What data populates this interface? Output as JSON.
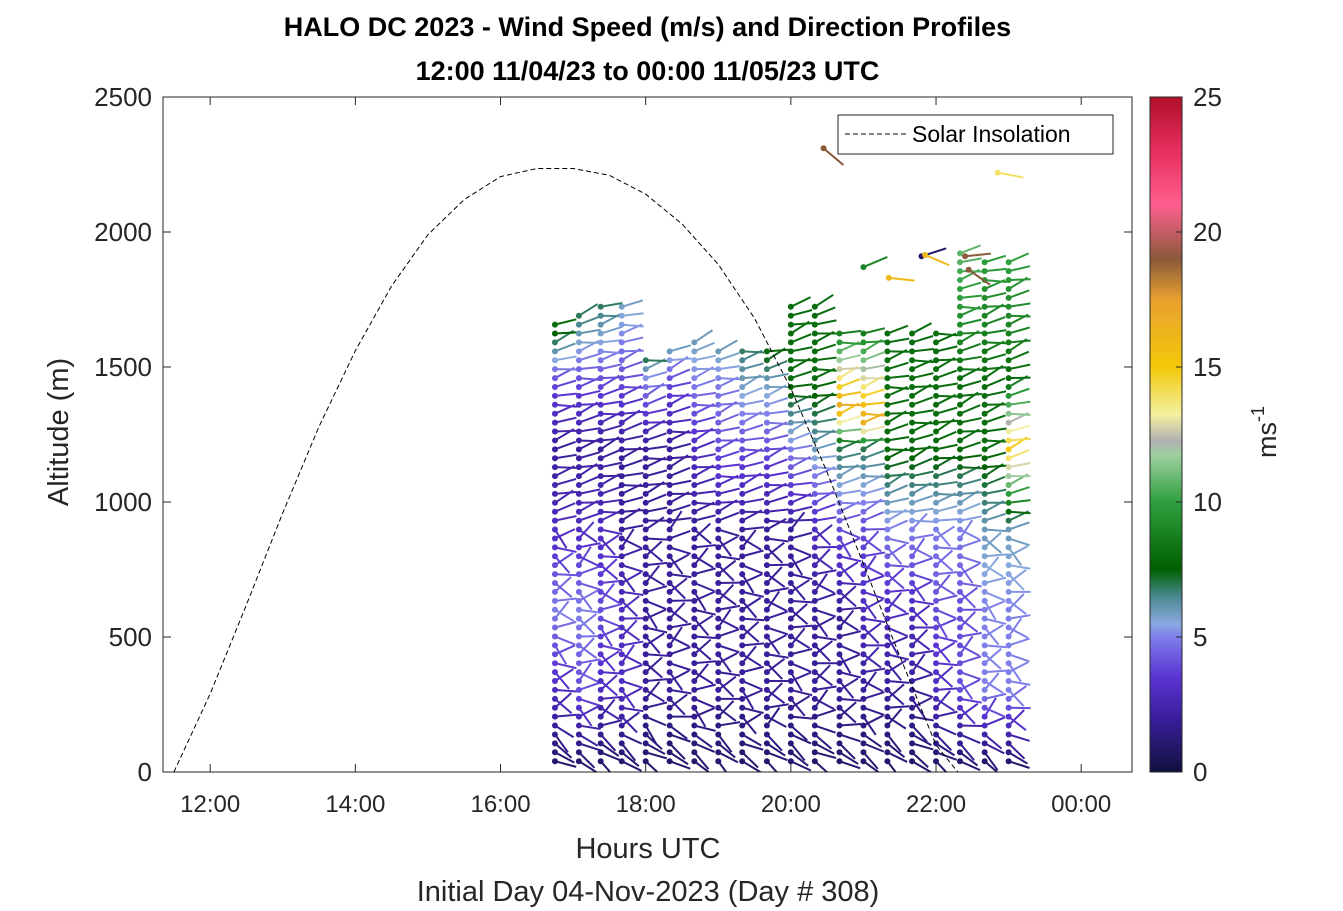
{
  "title_line1": "HALO DC 2023 - Wind Speed (m/s) and Direction Profiles",
  "title_line2": "12:00 11/04/23 to 00:00 11/05/23  UTC",
  "legend_label": "Solar Insolation",
  "colorbar_unit": "ms",
  "colorbar_unit_exp": "-1",
  "chart_data": {
    "type": "quiver",
    "xlabel": "Hours UTC",
    "ylabel": "Altitude (m)",
    "subtitle": "Initial Day 04-Nov-2023 (Day # 308)",
    "x_ticks": [
      "12:00",
      "14:00",
      "16:00",
      "18:00",
      "20:00",
      "22:00",
      "00:00"
    ],
    "x_tick_hours": [
      12,
      14,
      16,
      18,
      20,
      22,
      24
    ],
    "xlim_hours": [
      11.35,
      24.7
    ],
    "y_ticks": [
      0,
      500,
      1000,
      1500,
      2000,
      2500
    ],
    "ylim": [
      0,
      2500
    ],
    "colorbar_ticks": [
      0,
      5,
      10,
      15,
      20,
      25
    ],
    "colorbar_range": [
      0,
      25
    ],
    "legend_position": "top-right",
    "grid": false,
    "solar_insolation": {
      "style": "dashed",
      "x": [
        11.5,
        12.0,
        12.5,
        13.0,
        13.5,
        14.0,
        14.5,
        15.0,
        15.5,
        16.0,
        16.5,
        17.0,
        17.5,
        18.0,
        18.5,
        19.0,
        19.5,
        20.0,
        20.5,
        21.0,
        21.5,
        22.0,
        22.3,
        24.6
      ],
      "y": [
        0,
        290,
        620,
        960,
        1280,
        1560,
        1800,
        1990,
        2120,
        2205,
        2235,
        2235,
        2210,
        2140,
        2030,
        1880,
        1680,
        1420,
        1110,
        770,
        430,
        100,
        0,
        0
      ]
    },
    "profile_hours": [
      16.75,
      17.08,
      17.38,
      17.67,
      18.0,
      18.33,
      18.67,
      19.0,
      19.33,
      19.67,
      20.0,
      20.33,
      20.67,
      21.0,
      21.33,
      21.67,
      22.0,
      22.33,
      22.67,
      23.0
    ],
    "profile_top_altitude": [
      1660,
      1700,
      1740,
      1750,
      1530,
      1560,
      1600,
      1560,
      1590,
      1570,
      1730,
      1740,
      1650,
      1650,
      1640,
      1630,
      1640,
      1950,
      1910,
      1890
    ],
    "wind_speed_profiles_ms": [
      {
        "altitude": [
          50,
          300,
          600,
          900,
          1200,
          1450,
          1650
        ],
        "speed": [
          1,
          3,
          5,
          3,
          2,
          4,
          8
        ]
      },
      {
        "altitude": [
          50,
          300,
          600,
          900,
          1200,
          1450,
          1700
        ],
        "speed": [
          1,
          4,
          5,
          3,
          2,
          4,
          7
        ]
      },
      {
        "altitude": [
          50,
          300,
          600,
          900,
          1200,
          1450,
          1740
        ],
        "speed": [
          1,
          3,
          4,
          3,
          2,
          4,
          7
        ]
      },
      {
        "altitude": [
          50,
          300,
          600,
          900,
          1200,
          1450,
          1750
        ],
        "speed": [
          1,
          3,
          3,
          2,
          2,
          4,
          6
        ]
      },
      {
        "altitude": [
          50,
          300,
          600,
          900,
          1200,
          1450,
          1530
        ],
        "speed": [
          1,
          2,
          2,
          2,
          2,
          5,
          7
        ]
      },
      {
        "altitude": [
          50,
          300,
          600,
          900,
          1200,
          1450,
          1560
        ],
        "speed": [
          1,
          2,
          2,
          2,
          2,
          4,
          6
        ]
      },
      {
        "altitude": [
          50,
          300,
          600,
          900,
          1200,
          1450,
          1600
        ],
        "speed": [
          1,
          2,
          2,
          2,
          3,
          5,
          6
        ]
      },
      {
        "altitude": [
          50,
          300,
          600,
          900,
          1200,
          1450,
          1560
        ],
        "speed": [
          1,
          2,
          2,
          2,
          4,
          5,
          6
        ]
      },
      {
        "altitude": [
          50,
          300,
          600,
          900,
          1200,
          1450,
          1590
        ],
        "speed": [
          1,
          2,
          2,
          2,
          4,
          6,
          7
        ]
      },
      {
        "altitude": [
          50,
          300,
          600,
          900,
          1200,
          1450,
          1570
        ],
        "speed": [
          1,
          2,
          2,
          2,
          4,
          6,
          8
        ]
      },
      {
        "altitude": [
          50,
          300,
          600,
          900,
          1200,
          1450,
          1730
        ],
        "speed": [
          1,
          2,
          2,
          2,
          5,
          8,
          8
        ]
      },
      {
        "altitude": [
          50,
          300,
          600,
          900,
          1200,
          1450,
          1740
        ],
        "speed": [
          1,
          2,
          2,
          3,
          6,
          8,
          8
        ]
      },
      {
        "altitude": [
          50,
          300,
          600,
          900,
          1200,
          1350,
          1650
        ],
        "speed": [
          1,
          2,
          2,
          4,
          7,
          17,
          8
        ]
      },
      {
        "altitude": [
          50,
          300,
          600,
          900,
          1200,
          1300,
          1650
        ],
        "speed": [
          1,
          2,
          3,
          4,
          7,
          17,
          8
        ]
      },
      {
        "altitude": [
          50,
          300,
          600,
          900,
          1200,
          1450,
          1640
        ],
        "speed": [
          1,
          2,
          3,
          5,
          8,
          8,
          8
        ]
      },
      {
        "altitude": [
          50,
          300,
          600,
          900,
          1200,
          1450,
          1630
        ],
        "speed": [
          1,
          2,
          3,
          5,
          8,
          8,
          8
        ]
      },
      {
        "altitude": [
          50,
          300,
          600,
          900,
          1200,
          1450,
          1640
        ],
        "speed": [
          1,
          3,
          4,
          5,
          8,
          8,
          8
        ]
      },
      {
        "altitude": [
          50,
          300,
          600,
          900,
          1200,
          1450,
          1950
        ],
        "speed": [
          1,
          4,
          4,
          5,
          8,
          8,
          11
        ]
      },
      {
        "altitude": [
          50,
          300,
          600,
          900,
          1200,
          1450,
          1910
        ],
        "speed": [
          1,
          5,
          5,
          6,
          8,
          8,
          10
        ]
      },
      {
        "altitude": [
          50,
          300,
          600,
          900,
          1200,
          1450,
          1890
        ],
        "speed": [
          1,
          5,
          5,
          6,
          15,
          8,
          10
        ]
      }
    ],
    "scattered_barbs": [
      {
        "hour": 20.45,
        "altitude": 2310,
        "speed": 19
      },
      {
        "hour": 22.85,
        "altitude": 2220,
        "speed": 14
      },
      {
        "hour": 21.8,
        "altitude": 1910,
        "speed": 1
      },
      {
        "hour": 21.85,
        "altitude": 1915,
        "speed": 16
      },
      {
        "hour": 22.4,
        "altitude": 1910,
        "speed": 19
      },
      {
        "hour": 22.45,
        "altitude": 1860,
        "speed": 19
      },
      {
        "hour": 21.35,
        "altitude": 1830,
        "speed": 16
      },
      {
        "hour": 21.0,
        "altitude": 1870,
        "speed": 9
      }
    ]
  }
}
